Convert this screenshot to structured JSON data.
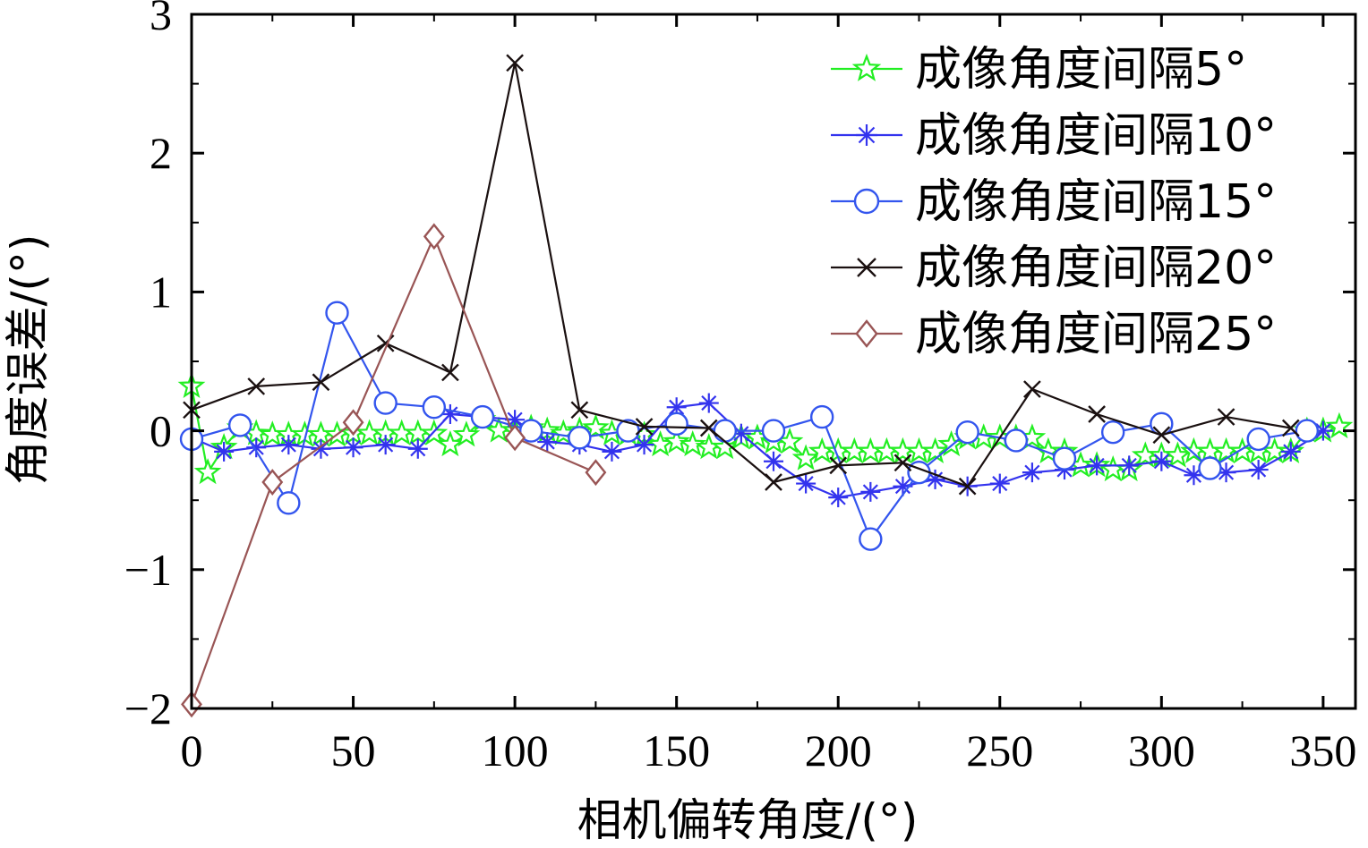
{
  "chart_data": {
    "type": "line",
    "title": "",
    "xlabel": "相机偏转角度/(°)",
    "ylabel": "角度误差/(°)",
    "xlim": [
      0,
      360
    ],
    "ylim": [
      -2,
      3
    ],
    "xticks": [
      0,
      50,
      100,
      150,
      200,
      250,
      300,
      350
    ],
    "yticks": [
      -2,
      -1,
      0,
      1,
      2,
      3
    ],
    "xtick_labels": [
      "0",
      "50",
      "100",
      "150",
      "200",
      "250",
      "300",
      "350"
    ],
    "ytick_labels": [
      "−2",
      "−1",
      "0",
      "1",
      "2",
      "3"
    ],
    "legend_position": "top-right",
    "series": [
      {
        "name": "成像角度间隔5°",
        "color": "#22ee22",
        "marker": "star",
        "x": [
          0,
          5,
          10,
          15,
          20,
          25,
          30,
          35,
          40,
          45,
          50,
          55,
          60,
          65,
          70,
          75,
          80,
          85,
          90,
          95,
          100,
          105,
          110,
          115,
          120,
          125,
          130,
          135,
          140,
          145,
          150,
          155,
          160,
          165,
          170,
          175,
          180,
          185,
          190,
          195,
          200,
          205,
          210,
          215,
          220,
          225,
          230,
          235,
          240,
          245,
          250,
          255,
          260,
          265,
          270,
          275,
          280,
          285,
          290,
          295,
          300,
          305,
          310,
          315,
          320,
          325,
          330,
          335,
          340,
          345,
          350,
          355
        ],
        "y": [
          0.32,
          -0.3,
          -0.12,
          0.02,
          -0.02,
          -0.03,
          -0.03,
          -0.03,
          -0.03,
          -0.03,
          -0.02,
          -0.02,
          -0.02,
          -0.02,
          -0.02,
          -0.02,
          -0.1,
          -0.03,
          0.08,
          0.0,
          0.0,
          0.02,
          0.0,
          -0.02,
          0.0,
          0.02,
          -0.02,
          -0.02,
          -0.03,
          -0.1,
          -0.08,
          -0.1,
          -0.12,
          -0.12,
          -0.05,
          -0.05,
          -0.08,
          -0.08,
          -0.2,
          -0.15,
          -0.15,
          -0.15,
          -0.15,
          -0.15,
          -0.15,
          -0.15,
          -0.15,
          -0.1,
          -0.05,
          -0.05,
          -0.05,
          -0.05,
          -0.05,
          -0.15,
          -0.15,
          -0.25,
          -0.25,
          -0.28,
          -0.28,
          -0.18,
          -0.18,
          -0.18,
          -0.15,
          -0.15,
          -0.15,
          -0.15,
          -0.15,
          -0.15,
          -0.15,
          0.0,
          0.0,
          0.03
        ]
      },
      {
        "name": "成像角度间隔10°",
        "color": "#3333ee",
        "marker": "asterisk",
        "x": [
          0,
          10,
          20,
          30,
          40,
          50,
          60,
          70,
          80,
          90,
          100,
          110,
          120,
          130,
          140,
          150,
          160,
          170,
          180,
          190,
          200,
          210,
          220,
          230,
          240,
          250,
          260,
          270,
          280,
          290,
          300,
          310,
          320,
          330,
          340,
          350
        ],
        "y": [
          -0.05,
          -0.15,
          -0.12,
          -0.1,
          -0.13,
          -0.12,
          -0.1,
          -0.13,
          0.12,
          0.1,
          0.08,
          -0.08,
          -0.1,
          -0.15,
          -0.1,
          0.17,
          0.2,
          -0.02,
          -0.22,
          -0.38,
          -0.48,
          -0.44,
          -0.4,
          -0.35,
          -0.4,
          -0.38,
          -0.3,
          -0.28,
          -0.25,
          -0.25,
          -0.22,
          -0.32,
          -0.3,
          -0.28,
          -0.15,
          0.0
        ]
      },
      {
        "name": "成像角度间隔15°",
        "color": "#3355ee",
        "marker": "circle",
        "x": [
          0,
          15,
          30,
          45,
          60,
          75,
          90,
          105,
          120,
          135,
          150,
          165,
          180,
          195,
          210,
          225,
          240,
          255,
          270,
          285,
          300,
          315,
          330,
          345
        ],
        "y": [
          -0.06,
          0.04,
          -0.52,
          0.85,
          0.2,
          0.17,
          0.1,
          0.0,
          -0.05,
          0.0,
          0.05,
          0.0,
          0.0,
          0.1,
          -0.78,
          -0.3,
          -0.01,
          -0.07,
          -0.2,
          -0.01,
          0.05,
          -0.27,
          -0.06,
          0.0
        ]
      },
      {
        "name": "成像角度间隔20°",
        "color": "#1a1010",
        "marker": "x",
        "x": [
          0,
          20,
          40,
          60,
          80,
          100,
          120,
          140,
          160,
          180,
          200,
          220,
          240,
          260,
          280,
          300,
          320,
          340
        ],
        "y": [
          0.15,
          0.32,
          0.35,
          0.63,
          0.42,
          2.65,
          0.15,
          0.03,
          0.02,
          -0.37,
          -0.25,
          -0.23,
          -0.4,
          0.3,
          0.12,
          -0.03,
          0.1,
          0.02
        ]
      },
      {
        "name": "成像角度间隔25°",
        "color": "#995555",
        "marker": "diamond",
        "x": [
          0,
          25,
          50,
          75,
          100,
          125
        ],
        "y": [
          -1.97,
          -0.37,
          0.06,
          1.4,
          -0.05,
          -0.3
        ]
      }
    ]
  }
}
